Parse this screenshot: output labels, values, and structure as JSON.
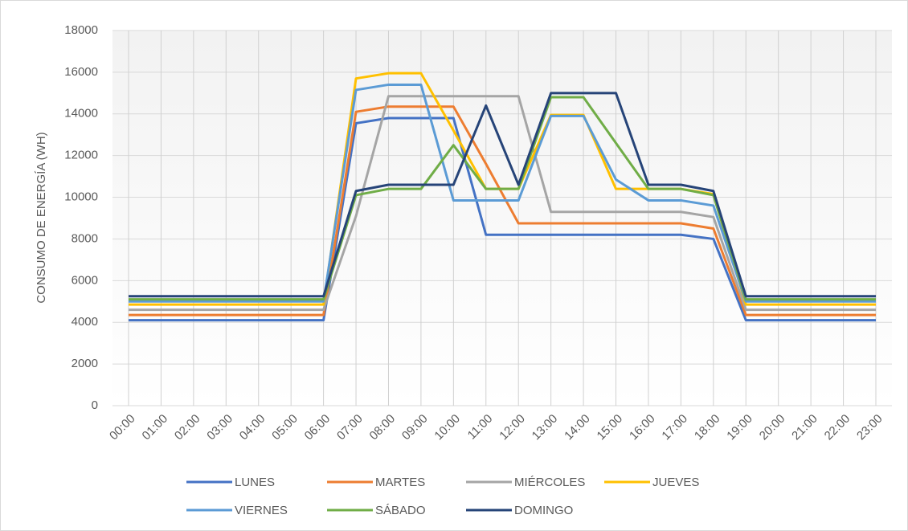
{
  "chart_data": {
    "type": "line",
    "y_label": "CONSUMO DE ENERGÍA (WH)",
    "categories": [
      "00:00",
      "01:00",
      "02:00",
      "03:00",
      "04:00",
      "05:00",
      "06:00",
      "07:00",
      "08:00",
      "09:00",
      "10:00",
      "11:00",
      "12:00",
      "13:00",
      "14:00",
      "15:00",
      "16:00",
      "17:00",
      "18:00",
      "19:00",
      "20:00",
      "21:00",
      "22:00",
      "23:00"
    ],
    "series": [
      {
        "name": "LUNES",
        "color": "#4472c4",
        "values": [
          4100,
          4100,
          4100,
          4100,
          4100,
          4100,
          4100,
          13550,
          13800,
          13800,
          13800,
          8200,
          8200,
          8200,
          8200,
          8200,
          8200,
          8200,
          8000,
          4100,
          4100,
          4100,
          4100,
          4100
        ]
      },
      {
        "name": "MARTES",
        "color": "#ed7d31",
        "values": [
          4350,
          4350,
          4350,
          4350,
          4350,
          4350,
          4350,
          14100,
          14350,
          14350,
          14350,
          11600,
          8750,
          8750,
          8750,
          8750,
          8750,
          8750,
          8500,
          4350,
          4350,
          4350,
          4350,
          4350
        ]
      },
      {
        "name": "MIÉRCOLES",
        "color": "#a5a5a5",
        "values": [
          4600,
          4600,
          4600,
          4600,
          4600,
          4600,
          4600,
          9100,
          14850,
          14850,
          14850,
          14850,
          14850,
          9300,
          9300,
          9300,
          9300,
          9300,
          9050,
          4600,
          4600,
          4600,
          4600,
          4600
        ]
      },
      {
        "name": "JUEVES",
        "color": "#ffc000",
        "values": [
          4850,
          4850,
          4850,
          4850,
          4850,
          4850,
          4850,
          15700,
          15950,
          15950,
          13200,
          10400,
          10400,
          13950,
          13950,
          10400,
          10400,
          10400,
          10150,
          4850,
          4850,
          4850,
          4850,
          4850
        ]
      },
      {
        "name": "VIERNES",
        "color": "#5b9bd5",
        "values": [
          5000,
          5000,
          5000,
          5000,
          5000,
          5000,
          5000,
          15150,
          15400,
          15400,
          9850,
          9850,
          9850,
          13900,
          13900,
          10850,
          9850,
          9850,
          9600,
          5000,
          5000,
          5000,
          5000,
          5000
        ]
      },
      {
        "name": "SÁBADO",
        "color": "#70ad47",
        "values": [
          5100,
          5100,
          5100,
          5100,
          5100,
          5100,
          5100,
          10100,
          10400,
          10400,
          12500,
          10400,
          10400,
          14800,
          14800,
          12600,
          10400,
          10400,
          10100,
          5100,
          5100,
          5100,
          5100,
          5100
        ]
      },
      {
        "name": "DOMINGO",
        "color": "#264478",
        "values": [
          5250,
          5250,
          5250,
          5250,
          5250,
          5250,
          5250,
          10300,
          10600,
          10600,
          10600,
          14400,
          10600,
          15000,
          15000,
          15000,
          10600,
          10600,
          10300,
          5250,
          5250,
          5250,
          5250,
          5250
        ]
      }
    ],
    "ylim": [
      0,
      18000
    ],
    "yticks": [
      0,
      2000,
      4000,
      6000,
      8000,
      10000,
      12000,
      14000,
      16000,
      18000
    ],
    "grid": true,
    "legend": "bottom"
  }
}
